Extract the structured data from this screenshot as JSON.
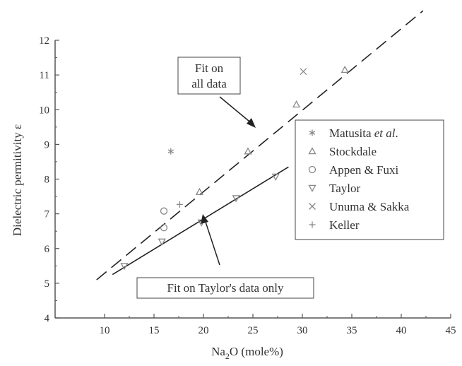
{
  "chart_data": {
    "type": "scatter",
    "xlabel": "Na₂O (mole%)",
    "xlabel_main": "Na",
    "xlabel_sub": "2",
    "xlabel_rest": "O (mole%)",
    "ylabel": "Dielectric permitivity ε",
    "xlim": [
      5,
      45
    ],
    "ylim": [
      4,
      12
    ],
    "x_ticks": [
      "10",
      "15",
      "20",
      "25",
      "30",
      "35",
      "40",
      "45"
    ],
    "y_ticks": [
      "4",
      "5",
      "6",
      "7",
      "8",
      "9",
      "10",
      "11",
      "12"
    ],
    "legend_position": "right",
    "series": [
      {
        "name": "Matusita et al.",
        "name_main": "Matusita ",
        "name_em": "et al",
        "name_tail": ".",
        "marker": "asterisk",
        "points": [
          [
            16.7,
            8.8
          ]
        ]
      },
      {
        "name": "Stockdale",
        "marker": "triangle-up",
        "points": [
          [
            19.6,
            7.63
          ],
          [
            24.5,
            8.8
          ],
          [
            29.4,
            10.15
          ],
          [
            34.3,
            11.15
          ]
        ]
      },
      {
        "name": "Appen & Fuxi",
        "marker": "circle",
        "points": [
          [
            16.0,
            7.08
          ],
          [
            16.0,
            6.6
          ]
        ]
      },
      {
        "name": "Taylor",
        "marker": "triangle-down",
        "points": [
          [
            12.0,
            5.5
          ],
          [
            15.8,
            6.2
          ],
          [
            19.8,
            6.75
          ],
          [
            23.3,
            7.45
          ],
          [
            27.3,
            8.07
          ]
        ]
      },
      {
        "name": "Unuma & Sakka",
        "marker": "cross",
        "points": [
          [
            30.1,
            11.1
          ]
        ]
      },
      {
        "name": "Keller",
        "marker": "plus",
        "points": [
          [
            17.6,
            7.27
          ]
        ]
      }
    ],
    "fit_lines": [
      {
        "name": "Fit on all data",
        "style": "dashed",
        "x": [
          9.2,
          42.2
        ],
        "y": [
          5.1,
          12.85
        ]
      },
      {
        "name": "Fit on Taylor's data only",
        "style": "solid",
        "x": [
          10.8,
          28.6
        ],
        "y": [
          5.25,
          8.35
        ]
      }
    ],
    "annotations": {
      "all_fit_line1": "Fit on",
      "all_fit_line2": "all data",
      "taylor_fit": "Fit on Taylor's data only"
    }
  }
}
